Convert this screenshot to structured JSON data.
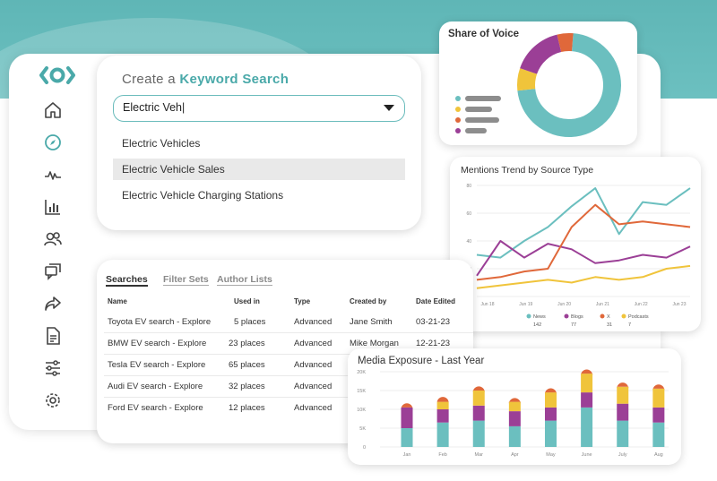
{
  "colors": {
    "teal": "#6bbfbf",
    "yellow": "#f0c43b",
    "purple": "#9b3f96",
    "orange": "#e0683a",
    "gray": "#8d8d8d"
  },
  "sidebar": {
    "logo": "brand-logo",
    "icons": [
      "home-icon",
      "compass-icon",
      "activity-icon",
      "bar-chart-icon",
      "users-icon",
      "chat-icon",
      "share-icon",
      "document-icon",
      "sliders-icon",
      "settings-icon"
    ]
  },
  "keyword_search": {
    "title_prefix": "Create a ",
    "title_bold": "Keyword Search",
    "input_value": "Electric Veh|",
    "options": [
      "Electric Vehicles",
      "Electric Vehicle Sales",
      "Electric Vehicle Charging Stations"
    ],
    "selected_index": 1
  },
  "share_of_voice": {
    "title": "Share of Voice",
    "slices": [
      {
        "color": "#6bbfbf",
        "value": 0.72
      },
      {
        "color": "#f0c43b",
        "value": 0.07
      },
      {
        "color": "#9b3f96",
        "value": 0.16
      },
      {
        "color": "#e0683a",
        "value": 0.05
      }
    ],
    "legend_colors": [
      "#6bbfbf",
      "#f0c43b",
      "#e0683a",
      "#9b3f96"
    ]
  },
  "searches": {
    "tabs": [
      "Searches",
      "Filter Sets",
      "Author Lists"
    ],
    "columns": [
      "Name",
      "Used in",
      "Type",
      "Created by",
      "Date Edited"
    ],
    "rows": [
      [
        "Toyota EV search - Explore",
        "5 places",
        "Advanced",
        "Jane Smith",
        "03-21-23"
      ],
      [
        "BMW EV search - Explore",
        "23 places",
        "Advanced",
        "Mike Morgan",
        "12-21-23"
      ],
      [
        "Tesla EV search - Explore",
        "65 places",
        "Advanced",
        "",
        ""
      ],
      [
        "Audi EV search - Explore",
        "32 places",
        "Advanced",
        "",
        ""
      ],
      [
        "Ford EV search - Explore",
        "12 places",
        "Advanced",
        "",
        ""
      ]
    ]
  },
  "chart_data": [
    {
      "type": "line",
      "title": "Mentions Trend by Source Type",
      "ylim": [
        0,
        80
      ],
      "yticks": [
        "80",
        "60",
        "40",
        "20",
        "0"
      ],
      "x_labels": [
        "Jun 18",
        "Jun 19",
        "Jun 20",
        "Jun 21",
        "Jun 22",
        "Jun 23"
      ],
      "series": [
        {
          "name": "News",
          "total": "142",
          "color": "#6bbfbf",
          "values": [
            30,
            28,
            40,
            50,
            65,
            78,
            45,
            68,
            66,
            78
          ]
        },
        {
          "name": "Blogs",
          "total": "77",
          "color": "#9b3f96",
          "values": [
            15,
            40,
            28,
            38,
            34,
            24,
            26,
            30,
            28,
            36
          ]
        },
        {
          "name": "X",
          "total": "31",
          "color": "#e0683a",
          "values": [
            12,
            14,
            18,
            20,
            50,
            66,
            52,
            54,
            52,
            50
          ]
        },
        {
          "name": "Podcasts",
          "total": "7",
          "color": "#f0c43b",
          "values": [
            6,
            8,
            10,
            12,
            10,
            14,
            12,
            14,
            20,
            22
          ]
        }
      ]
    },
    {
      "type": "bar",
      "title": "Media Exposure - Last Year",
      "ylim": [
        0,
        20000
      ],
      "yticks": [
        "20K",
        "15K",
        "10K",
        "5K",
        "0"
      ],
      "categories": [
        "Jan",
        "Feb",
        "Mar",
        "Apr",
        "May",
        "June",
        "July",
        "Aug"
      ],
      "stack_colors": [
        "#6bbfbf",
        "#9b3f96",
        "#f0c43b",
        "#e0683a"
      ],
      "stacks": [
        [
          5000,
          5500,
          0,
          1100
        ],
        [
          6500,
          3500,
          2000,
          1300
        ],
        [
          7000,
          4000,
          4000,
          1100
        ],
        [
          5500,
          4000,
          2500,
          1000
        ],
        [
          7000,
          3500,
          4000,
          1100
        ],
        [
          10500,
          4000,
          5000,
          1100
        ],
        [
          7000,
          4500,
          4500,
          1100
        ],
        [
          6500,
          4000,
          5000,
          1100
        ]
      ]
    }
  ]
}
